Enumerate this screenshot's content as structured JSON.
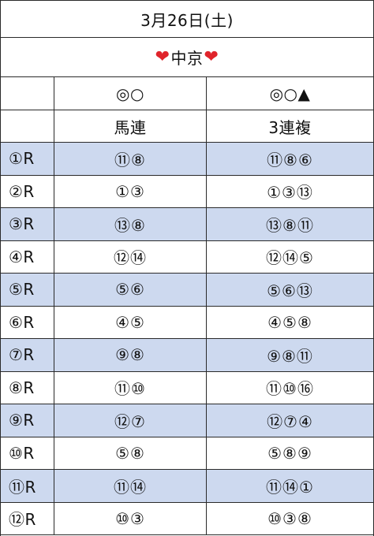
{
  "header": {
    "date": "3月26日(土)",
    "venue": "中京",
    "venue_icon": "heart-icon",
    "heart_color": "#e0242b"
  },
  "columns": {
    "marks": [
      "",
      "◎○",
      "◎○▲"
    ],
    "bet_types": [
      "",
      "馬連",
      "3連複"
    ]
  },
  "shade_color": "#cdd9ef",
  "races": [
    {
      "race": "①R",
      "umaren": "⑪⑧",
      "sanrenpuku": "⑪⑧⑥"
    },
    {
      "race": "②R",
      "umaren": "①③",
      "sanrenpuku": "①③⑬"
    },
    {
      "race": "③R",
      "umaren": "⑬⑧",
      "sanrenpuku": "⑬⑧⑪"
    },
    {
      "race": "④R",
      "umaren": "⑫⑭",
      "sanrenpuku": "⑫⑭⑤"
    },
    {
      "race": "⑤R",
      "umaren": "⑤⑥",
      "sanrenpuku": "⑤⑥⑬"
    },
    {
      "race": "⑥R",
      "umaren": "④⑤",
      "sanrenpuku": "④⑤⑧"
    },
    {
      "race": "⑦R",
      "umaren": "⑨⑧",
      "sanrenpuku": "⑨⑧⑪"
    },
    {
      "race": "⑧R",
      "umaren": "⑪⑩",
      "sanrenpuku": "⑪⑩⑯"
    },
    {
      "race": "⑨R",
      "umaren": "⑫⑦",
      "sanrenpuku": "⑫⑦④"
    },
    {
      "race": "⑩R",
      "umaren": "⑤⑧",
      "sanrenpuku": "⑤⑧⑨"
    },
    {
      "race": "⑪R",
      "umaren": "⑪⑭",
      "sanrenpuku": "⑪⑭①"
    },
    {
      "race": "⑫R",
      "umaren": "⑩③",
      "sanrenpuku": "⑩③⑧"
    }
  ]
}
